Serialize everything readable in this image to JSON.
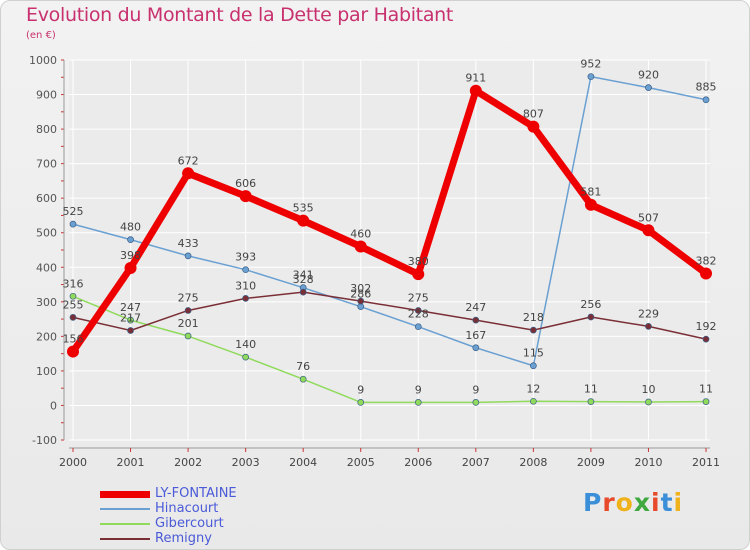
{
  "title": "Evolution du Montant de la Dette par Habitant",
  "subtitle": "(en €)",
  "logo": {
    "text": "Proxiti",
    "colors": [
      "#3b8ed8",
      "#e8492b",
      "#f0b21a",
      "#3fa83f",
      "#e8492b",
      "#3b8ed8",
      "#f0b21a"
    ]
  },
  "chart_data": {
    "type": "line",
    "x": [
      "2000",
      "2001",
      "2002",
      "2003",
      "2004",
      "2005",
      "2006",
      "2007",
      "2008",
      "2009",
      "2010",
      "2011"
    ],
    "ylim": [
      -100,
      1000
    ],
    "yticks": [
      -100,
      0,
      100,
      200,
      300,
      400,
      500,
      600,
      700,
      800,
      900,
      1000
    ],
    "grid": true,
    "legend_position": "bottom-left",
    "series": [
      {
        "name": "LY-FONTAINE",
        "color": "#ee0000",
        "width": 7,
        "values": [
          156,
          398,
          672,
          606,
          535,
          460,
          380,
          911,
          807,
          581,
          507,
          382
        ]
      },
      {
        "name": "Hinacourt",
        "color": "#6aa0d2",
        "width": 1.5,
        "values": [
          525,
          480,
          433,
          393,
          341,
          286,
          228,
          167,
          115,
          952,
          920,
          885
        ]
      },
      {
        "name": "Gibercourt",
        "color": "#90da5c",
        "width": 1.5,
        "values": [
          316,
          247,
          201,
          140,
          76,
          9,
          9,
          9,
          12,
          11,
          10,
          11
        ]
      },
      {
        "name": "Remigny",
        "color": "#7a2f36",
        "width": 1.5,
        "values": [
          255,
          217,
          275,
          310,
          328,
          302,
          275,
          247,
          218,
          256,
          229,
          192
        ]
      }
    ]
  }
}
